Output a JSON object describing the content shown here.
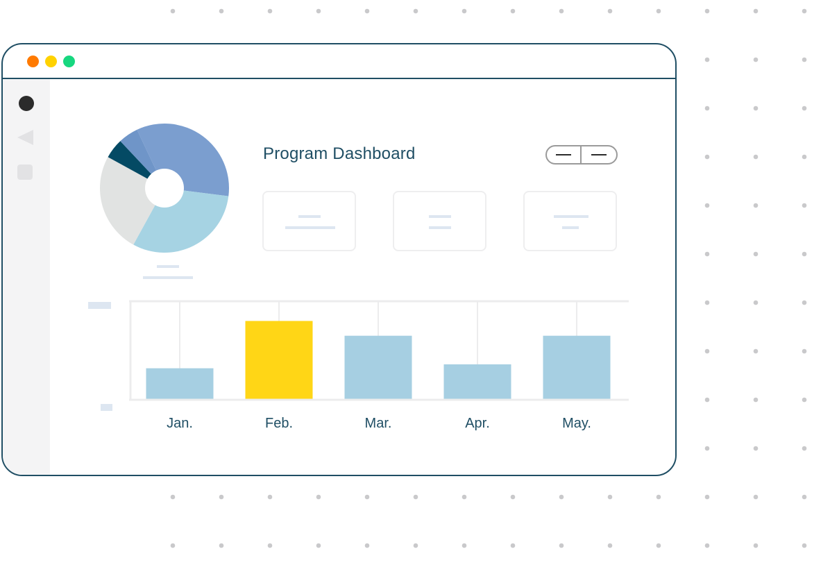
{
  "window": {
    "traffic_lights": {
      "close": "#ff7a00",
      "minimize": "#ffd200",
      "maximize": "#17d77f"
    },
    "border_color": "#1f4e64"
  },
  "sidebar": {
    "items": [
      {
        "icon": "circle-icon",
        "color": "#2b2b2b"
      },
      {
        "icon": "back-arrow-icon",
        "color": "#e2e2e4"
      },
      {
        "icon": "square-icon",
        "color": "#e2e2e4"
      }
    ]
  },
  "header": {
    "title": "Program Dashboard",
    "toggle": {
      "left_icon": "minus-icon",
      "right_icon": "minus-icon"
    }
  },
  "cards": [
    {
      "name": "stat-card-1"
    },
    {
      "name": "stat-card-2"
    },
    {
      "name": "stat-card-3"
    }
  ],
  "chart_data": [
    {
      "type": "pie",
      "donut": true,
      "values": [
        34,
        31,
        25,
        5,
        5
      ],
      "colors": [
        "#7b9ecf",
        "#a6d3e3",
        "#e1e3e2",
        "#044a64",
        "#6f95c8"
      ]
    },
    {
      "type": "bar",
      "categories": [
        "Jan.",
        "Feb.",
        "Mar.",
        "Apr.",
        "May."
      ],
      "values": [
        32,
        80,
        65,
        36,
        65
      ],
      "colors": [
        "#a6cfe2",
        "#ffd616",
        "#a6cfe2",
        "#a6cfe2",
        "#a6cfe2"
      ],
      "ylim": [
        0,
        100
      ],
      "grid": true
    }
  ],
  "colors": {
    "accent": "#1f4e64",
    "highlight": "#ffd616",
    "bar": "#a6cfe2",
    "dots": "#c9c9cb"
  }
}
